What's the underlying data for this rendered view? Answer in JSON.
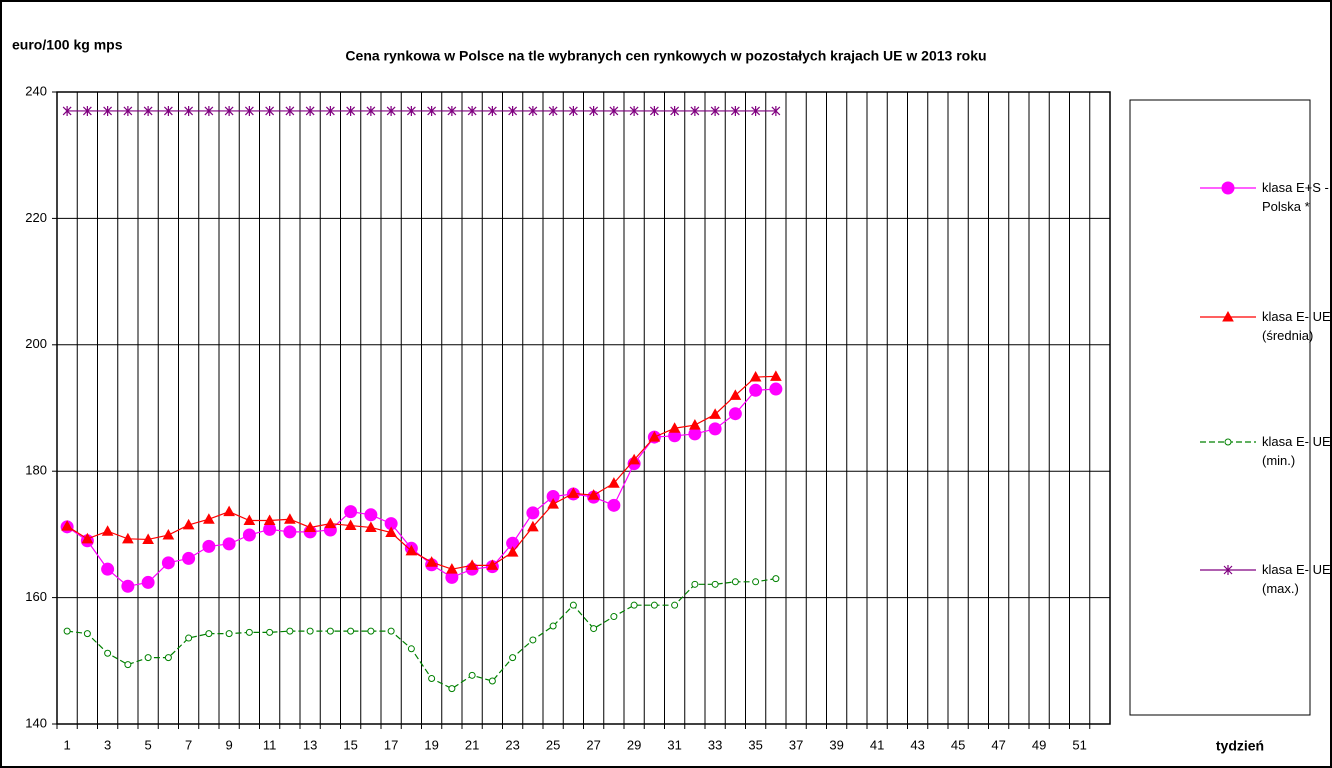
{
  "chart_data": {
    "type": "line",
    "title": "Cena rynkowa w Polsce na tle wybranych cen rynkowych w pozostałych krajach UE w  2013 roku",
    "y_label": "euro/100 kg mps",
    "x_label": "tydzień",
    "categories": [
      1,
      null,
      3,
      null,
      5,
      null,
      7,
      null,
      9,
      null,
      11,
      null,
      13,
      null,
      15,
      null,
      17,
      null,
      19,
      null,
      21,
      null,
      23,
      null,
      25,
      null,
      27,
      null,
      29,
      null,
      31,
      null,
      33,
      null,
      35,
      null,
      37,
      null,
      39,
      null,
      41,
      null,
      43,
      null,
      45,
      null,
      47,
      null,
      49,
      null,
      51,
      null
    ],
    "ylim": [
      140,
      240
    ],
    "yticks": [
      140,
      160,
      180,
      200,
      220,
      240
    ],
    "grid": true,
    "legend": "right",
    "series": [
      {
        "name": "klasa E+S - Polska *",
        "color": "#ff00ff",
        "marker": "circle",
        "values": [
          171.2,
          169,
          164.5,
          161.8,
          162.4,
          165.5,
          166.2,
          168.1,
          168.5,
          169.9,
          170.8,
          170.4,
          170.4,
          170.7,
          173.6,
          173.1,
          171.7,
          167.8,
          165.2,
          163.2,
          164.5,
          164.9,
          168.6,
          173.4,
          176,
          176.4,
          175.9,
          174.6,
          181.2,
          185.4,
          185.6,
          185.9,
          186.7,
          189.1,
          192.8,
          193,
          null,
          null,
          null,
          null,
          null,
          null,
          null,
          null,
          null,
          null,
          null,
          null,
          null,
          null,
          null,
          null
        ]
      },
      {
        "name": "klasa E- UE (średnia)",
        "color": "#ff0000",
        "marker": "triangle",
        "values": [
          171.3,
          169.3,
          170.5,
          169.3,
          169.2,
          169.9,
          171.5,
          172.4,
          173.6,
          172.2,
          172.2,
          172.4,
          171.1,
          171.7,
          171.4,
          171.1,
          170.3,
          167.4,
          165.6,
          164.5,
          165.1,
          165.1,
          167.2,
          171.2,
          174.8,
          176.5,
          176.2,
          178.1,
          181.8,
          185.4,
          186.8,
          187.3,
          189,
          192,
          194.9,
          195,
          null,
          null,
          null,
          null,
          null,
          null,
          null,
          null,
          null,
          null,
          null,
          null,
          null,
          null,
          null,
          null
        ]
      },
      {
        "name": "klasa E- UE (min.)",
        "color": "#008000",
        "marker": "open-circle",
        "dash": true,
        "values": [
          154.7,
          154.3,
          151.2,
          149.4,
          150.5,
          150.5,
          153.6,
          154.3,
          154.3,
          154.5,
          154.5,
          154.7,
          154.7,
          154.7,
          154.7,
          154.7,
          154.7,
          151.9,
          147.2,
          145.6,
          147.7,
          146.8,
          150.5,
          153.3,
          155.5,
          158.8,
          155.1,
          157,
          158.8,
          158.8,
          158.8,
          162.1,
          162.1,
          162.5,
          162.5,
          163,
          null,
          null,
          null,
          null,
          null,
          null,
          null,
          null,
          null,
          null,
          null,
          null,
          null,
          null,
          null,
          null
        ]
      },
      {
        "name": "klasa E- UE (max.)",
        "color": "#800080",
        "marker": "asterisk",
        "values": [
          237,
          237,
          237,
          237,
          237,
          237,
          237,
          237,
          237,
          237,
          237,
          237,
          237,
          237,
          237,
          237,
          237,
          237,
          237,
          237,
          237,
          237,
          237,
          237,
          237,
          237,
          237,
          237,
          237,
          237,
          237,
          237,
          237,
          237,
          237,
          237,
          null,
          null,
          null,
          null,
          null,
          null,
          null,
          null,
          null,
          null,
          null,
          null,
          null,
          null,
          null,
          null
        ]
      }
    ]
  }
}
